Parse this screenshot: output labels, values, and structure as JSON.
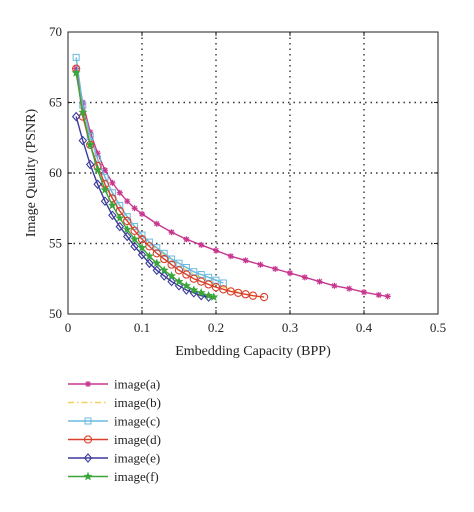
{
  "chart_data": {
    "type": "line",
    "title": "",
    "xlabel": "Embedding Capacity (BPP)",
    "ylabel": "Image Quality (PSNR)",
    "xlim": [
      0,
      0.5
    ],
    "ylim": [
      50,
      70
    ],
    "xticks": [
      "0",
      "0.1",
      "0.2",
      "0.3",
      "0.4",
      "0.5"
    ],
    "yticks": [
      "50",
      "55",
      "60",
      "65",
      "70"
    ],
    "grid": true,
    "legend_position": "below-left",
    "series": [
      {
        "name": "image(a)",
        "color": "#c8378f",
        "marker": "asterisk",
        "line": "solid",
        "points": [
          [
            0.011,
            67.4
          ],
          [
            0.02,
            65.0
          ],
          [
            0.03,
            62.9
          ],
          [
            0.04,
            61.4
          ],
          [
            0.05,
            60.2
          ],
          [
            0.06,
            59.3
          ],
          [
            0.07,
            58.6
          ],
          [
            0.08,
            58.0
          ],
          [
            0.09,
            57.5
          ],
          [
            0.1,
            57.1
          ],
          [
            0.12,
            56.4
          ],
          [
            0.14,
            55.8
          ],
          [
            0.16,
            55.3
          ],
          [
            0.18,
            54.9
          ],
          [
            0.2,
            54.5
          ],
          [
            0.22,
            54.1
          ],
          [
            0.24,
            53.8
          ],
          [
            0.26,
            53.5
          ],
          [
            0.28,
            53.2
          ],
          [
            0.3,
            52.9
          ],
          [
            0.32,
            52.6
          ],
          [
            0.34,
            52.3
          ],
          [
            0.36,
            52.0
          ],
          [
            0.38,
            51.8
          ],
          [
            0.4,
            51.55
          ],
          [
            0.42,
            51.35
          ],
          [
            0.432,
            51.25
          ]
        ]
      },
      {
        "name": "image(b)",
        "color": "#f2d25a",
        "marker": "none",
        "line": "dashdot",
        "points": [
          [
            0.011,
            67.0
          ],
          [
            0.02,
            64.6
          ],
          [
            0.03,
            62.5
          ],
          [
            0.04,
            61.0
          ],
          [
            0.05,
            59.7
          ],
          [
            0.06,
            58.6
          ],
          [
            0.07,
            57.7
          ],
          [
            0.08,
            56.9
          ],
          [
            0.09,
            56.2
          ],
          [
            0.1,
            55.6
          ],
          [
            0.12,
            54.6
          ],
          [
            0.14,
            53.8
          ],
          [
            0.16,
            53.1
          ],
          [
            0.18,
            52.6
          ],
          [
            0.2,
            52.1
          ],
          [
            0.22,
            51.7
          ],
          [
            0.24,
            51.4
          ],
          [
            0.26,
            51.2
          ]
        ]
      },
      {
        "name": "image(c)",
        "color": "#6ab8de",
        "marker": "square",
        "line": "solid",
        "points": [
          [
            0.011,
            68.2
          ],
          [
            0.02,
            64.8
          ],
          [
            0.03,
            62.6
          ],
          [
            0.04,
            61.0
          ],
          [
            0.05,
            59.7
          ],
          [
            0.06,
            58.6
          ],
          [
            0.07,
            57.7
          ],
          [
            0.08,
            56.9
          ],
          [
            0.09,
            56.2
          ],
          [
            0.1,
            55.6
          ],
          [
            0.11,
            55.1
          ],
          [
            0.12,
            54.7
          ],
          [
            0.13,
            54.3
          ],
          [
            0.14,
            53.9
          ],
          [
            0.15,
            53.6
          ],
          [
            0.16,
            53.3
          ],
          [
            0.17,
            53.0
          ],
          [
            0.18,
            52.8
          ],
          [
            0.19,
            52.6
          ],
          [
            0.2,
            52.4
          ],
          [
            0.21,
            52.2
          ]
        ]
      },
      {
        "name": "image(d)",
        "color": "#d9412b",
        "marker": "circle",
        "line": "solid",
        "points": [
          [
            0.011,
            67.4
          ],
          [
            0.02,
            64.0
          ],
          [
            0.03,
            62.0
          ],
          [
            0.04,
            60.5
          ],
          [
            0.05,
            59.2
          ],
          [
            0.06,
            58.2
          ],
          [
            0.07,
            57.3
          ],
          [
            0.08,
            56.6
          ],
          [
            0.09,
            55.9
          ],
          [
            0.1,
            55.3
          ],
          [
            0.11,
            54.8
          ],
          [
            0.12,
            54.3
          ],
          [
            0.13,
            53.9
          ],
          [
            0.14,
            53.5
          ],
          [
            0.15,
            53.1
          ],
          [
            0.16,
            52.8
          ],
          [
            0.17,
            52.5
          ],
          [
            0.18,
            52.3
          ],
          [
            0.19,
            52.1
          ],
          [
            0.2,
            51.9
          ],
          [
            0.21,
            51.75
          ],
          [
            0.22,
            51.6
          ],
          [
            0.23,
            51.5
          ],
          [
            0.24,
            51.4
          ],
          [
            0.25,
            51.3
          ],
          [
            0.265,
            51.2
          ]
        ]
      },
      {
        "name": "image(e)",
        "color": "#3b3a9c",
        "marker": "diamond",
        "line": "solid",
        "points": [
          [
            0.011,
            64.0
          ],
          [
            0.02,
            62.3
          ],
          [
            0.03,
            60.6
          ],
          [
            0.04,
            59.2
          ],
          [
            0.05,
            58.0
          ],
          [
            0.06,
            57.0
          ],
          [
            0.07,
            56.2
          ],
          [
            0.08,
            55.5
          ],
          [
            0.09,
            54.8
          ],
          [
            0.1,
            54.2
          ],
          [
            0.11,
            53.6
          ],
          [
            0.12,
            53.1
          ],
          [
            0.13,
            52.7
          ],
          [
            0.14,
            52.3
          ],
          [
            0.15,
            52.0
          ],
          [
            0.16,
            51.7
          ],
          [
            0.17,
            51.5
          ],
          [
            0.18,
            51.3
          ],
          [
            0.19,
            51.2
          ]
        ]
      },
      {
        "name": "image(f)",
        "color": "#3aa63a",
        "marker": "star",
        "line": "solid",
        "points": [
          [
            0.011,
            67.1
          ],
          [
            0.02,
            64.3
          ],
          [
            0.03,
            62.0
          ],
          [
            0.04,
            60.2
          ],
          [
            0.05,
            58.8
          ],
          [
            0.06,
            57.7
          ],
          [
            0.07,
            56.8
          ],
          [
            0.08,
            56.0
          ],
          [
            0.09,
            55.3
          ],
          [
            0.1,
            54.7
          ],
          [
            0.11,
            54.1
          ],
          [
            0.12,
            53.6
          ],
          [
            0.13,
            53.1
          ],
          [
            0.14,
            52.7
          ],
          [
            0.15,
            52.3
          ],
          [
            0.16,
            52.0
          ],
          [
            0.17,
            51.7
          ],
          [
            0.18,
            51.5
          ],
          [
            0.19,
            51.3
          ],
          [
            0.197,
            51.2
          ]
        ]
      }
    ]
  }
}
